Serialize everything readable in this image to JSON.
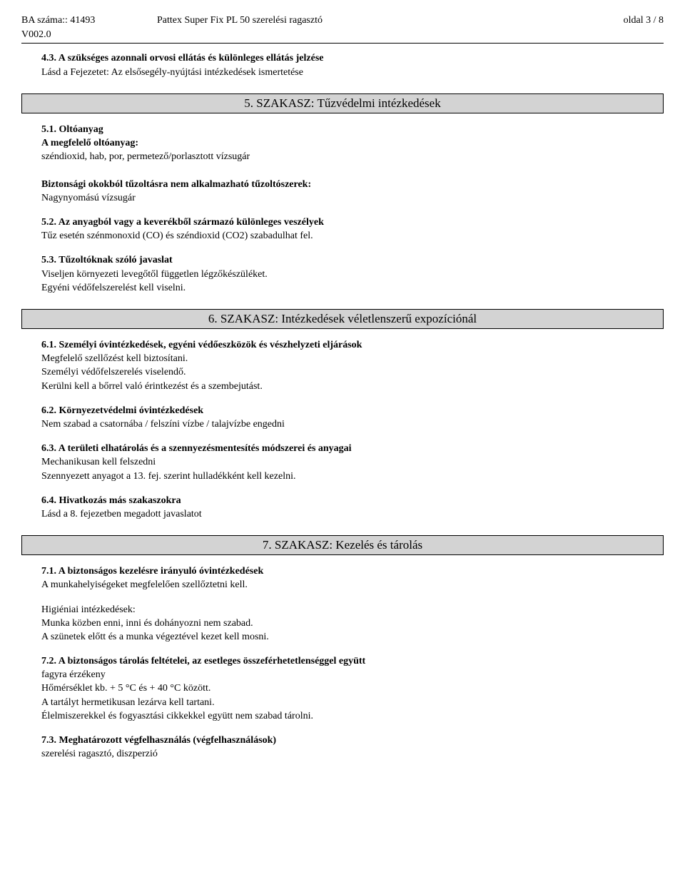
{
  "header": {
    "ba_label": "BA száma:: 41493",
    "version": "V002.0",
    "title": "Pattex Super Fix PL 50 szerelési ragasztó",
    "page": "oldal 3 / 8"
  },
  "s4_3": {
    "heading": "4.3. A szükséges azonnali orvosi ellátás és különleges ellátás jelzése",
    "line1": "Lásd a Fejezetet: Az elsősegély-nyújtási intézkedések ismertetése"
  },
  "sec5": {
    "title": "5. SZAKASZ: Tűzvédelmi intézkedések"
  },
  "s5_1": {
    "heading": "5.1. Oltóanyag",
    "sub1": "A megfelelő oltóanyag:",
    "line1": "széndioxid, hab, por, permetező/porlasztott vízsugár",
    "sub2": "Biztonsági okokból tűzoltásra nem alkalmazható tűzoltószerek:",
    "line2": "Nagynyomású vízsugár"
  },
  "s5_2": {
    "heading": "5.2. Az anyagból vagy a keverékből származó különleges veszélyek",
    "line1": "Tűz esetén szénmonoxid (CO) és széndioxid (CO2) szabadulhat fel."
  },
  "s5_3": {
    "heading": "5.3. Tűzoltóknak szóló javaslat",
    "line1": "Viseljen környezeti levegőtől független légzőkészüléket.",
    "line2": "Egyéni védőfelszerelést kell viselni."
  },
  "sec6": {
    "title": "6. SZAKASZ: Intézkedések véletlenszerű expozíciónál"
  },
  "s6_1": {
    "heading": "6.1. Személyi óvintézkedések, egyéni védőeszközök és vészhelyzeti eljárások",
    "line1": "Megfelelő szellőzést kell biztosítani.",
    "line2": "Személyi védőfelszerelés viselendő.",
    "line3": "Kerülni kell a bőrrel való érintkezést és a szembejutást."
  },
  "s6_2": {
    "heading": "6.2. Környezetvédelmi óvintézkedések",
    "line1": "Nem szabad a csatornába / felszíni vízbe / talajvízbe engedni"
  },
  "s6_3": {
    "heading": "6.3. A területi elhatárolás és a szennyezésmentesítés módszerei és anyagai",
    "line1": "Mechanikusan kell felszedni",
    "line2": "Szennyezett anyagot a 13. fej. szerint hulladékként kell kezelni."
  },
  "s6_4": {
    "heading": "6.4. Hivatkozás más szakaszokra",
    "line1": "Lásd a 8. fejezetben megadott javaslatot"
  },
  "sec7": {
    "title": "7. SZAKASZ: Kezelés és tárolás"
  },
  "s7_1": {
    "heading": "7.1. A biztonságos kezelésre irányuló óvintézkedések",
    "line1": "A munkahelyiségeket megfelelően szellőztetni kell.",
    "sub1": "Higiéniai intézkedések:",
    "line2": "Munka közben enni, inni és dohányozni nem szabad.",
    "line3": "A szünetek előtt és a munka végeztével kezet kell mosni."
  },
  "s7_2": {
    "heading": "7.2. A biztonságos tárolás feltételei, az esetleges összeférhetetlenséggel együtt",
    "line1": "fagyra érzékeny",
    "line2": "Hőmérséklet kb. + 5 °C és + 40 °C között.",
    "line3": "A tartályt hermetikusan lezárva kell tartani.",
    "line4": "Élelmiszerekkel és fogyasztási cikkekkel együtt nem szabad tárolni."
  },
  "s7_3": {
    "heading": "7.3. Meghatározott végfelhasználás (végfelhasználások)",
    "line1": "szerelési ragasztó, diszperzió"
  }
}
